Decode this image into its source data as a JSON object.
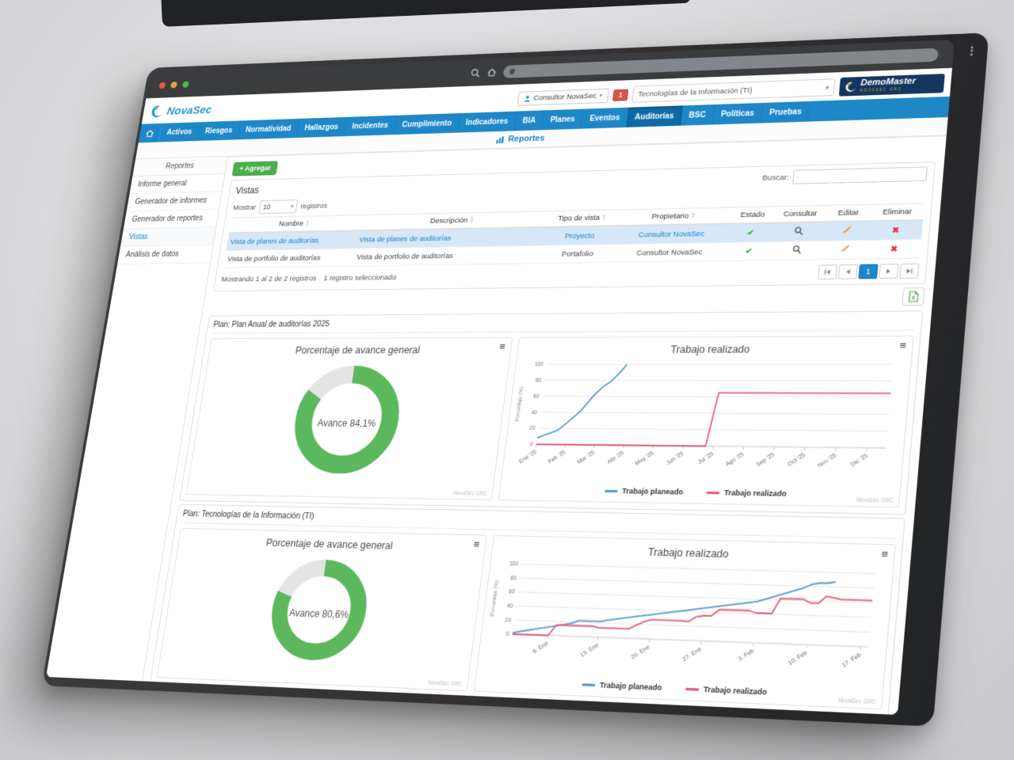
{
  "browser": {
    "menu_dots": "⋮"
  },
  "colors": {
    "accent_blue": "#1e87c8",
    "link_blue": "#1a7fc4",
    "action_green": "#4cae4c",
    "alert_red": "#d9534f"
  },
  "app": {
    "brand": "NovaSec",
    "header": {
      "user_button": "Consultor NovaSec",
      "notification_count": "1",
      "context_select": "Tecnologías de la Información (TI)",
      "demomaster_title": "DemoMaster",
      "demomaster_subtitle": "NOVASEC GRC"
    },
    "nav": {
      "items": [
        {
          "label": "Activos"
        },
        {
          "label": "Riesgos"
        },
        {
          "label": "Normatividad"
        },
        {
          "label": "Hallazgos"
        },
        {
          "label": "Incidentes"
        },
        {
          "label": "Cumplimiento"
        },
        {
          "label": "Indicadores"
        },
        {
          "label": "BIA"
        },
        {
          "label": "Planes"
        },
        {
          "label": "Eventos"
        },
        {
          "label": "Auditorías"
        },
        {
          "label": "BSC"
        },
        {
          "label": "Políticas"
        },
        {
          "label": "Pruebas"
        }
      ]
    },
    "page_title": "Reportes",
    "sidebar": {
      "header": "Reportes",
      "items": [
        {
          "label": "Informe general"
        },
        {
          "label": "Generador de informes"
        },
        {
          "label": "Generador de reportes"
        },
        {
          "label": "Vistas"
        },
        {
          "label": "Análisis de datos"
        }
      ]
    },
    "add_button": "+ Agregar",
    "panel": {
      "title": "Vistas",
      "search_label": "Buscar:",
      "search_value": "",
      "show_label": "Mostrar",
      "show_value": "10",
      "show_suffix": "registros",
      "columns": [
        "Nombre",
        "Descripción",
        "Tipo de vista",
        "Propietario",
        "Estado",
        "Consultar",
        "Editar",
        "Eliminar"
      ],
      "rows": [
        {
          "name": "Vista de planes de auditorías",
          "desc": "Vista de planes de auditorías",
          "tipo": "Proyecto",
          "owner": "Consultor NovaSec"
        },
        {
          "name": "Vista de portfolio de auditorías",
          "desc": "Vista de portfolio de auditorías",
          "tipo": "Portafolio",
          "owner": "Consultor NovaSec"
        }
      ],
      "footer_info": "Mostrando 1 al 2 de 2 registros",
      "footer_selected": "1 registro seleccionado",
      "pagination_page": "1"
    },
    "sections": [
      {
        "title": "Plan: Plan Anual de auditorías 2025"
      },
      {
        "title": "Plan: Tecnologías de la Información (TI)"
      }
    ]
  },
  "chart_data": [
    {
      "type": "pie",
      "subtype": "donut",
      "title": "Porcentaje de avance general",
      "center_label": "Avance 84,1%",
      "value_pct": 84.1,
      "remainder_pct": 15.9,
      "colors": {
        "progress": "#5cb85c",
        "remainder": "#e4e4e4"
      },
      "watermark": "NovaSec GRC"
    },
    {
      "type": "line",
      "title": "Trabajo realizado",
      "ylabel": "Porcentaje (%)",
      "ylim": [
        0,
        100
      ],
      "y_ticks": [
        0,
        20,
        40,
        60,
        80,
        100
      ],
      "x_range": [
        0,
        11.6
      ],
      "x_ticks": [
        {
          "pos": 0,
          "label": "Ene '25"
        },
        {
          "pos": 1,
          "label": "Feb '25"
        },
        {
          "pos": 2,
          "label": "Mar '25"
        },
        {
          "pos": 3,
          "label": "Abr '25"
        },
        {
          "pos": 4,
          "label": "May '25"
        },
        {
          "pos": 5,
          "label": "Jun '25"
        },
        {
          "pos": 6,
          "label": "Jul '25"
        },
        {
          "pos": 7,
          "label": "Ago '25"
        },
        {
          "pos": 8,
          "label": "Sep '25"
        },
        {
          "pos": 9,
          "label": "Oct '25"
        },
        {
          "pos": 10,
          "label": "Nov '25"
        },
        {
          "pos": 11,
          "label": "Dic '25"
        }
      ],
      "series": [
        {
          "name": "Trabajo planeado",
          "color": "#5b9bd5",
          "points": [
            [
              0,
              8
            ],
            [
              0.7,
              18
            ],
            [
              1,
              28
            ],
            [
              1.4,
              42
            ],
            [
              1.8,
              62
            ],
            [
              2.1,
              73
            ],
            [
              2.3,
              78
            ],
            [
              2.6,
              90
            ],
            [
              2.8,
              100
            ]
          ]
        },
        {
          "name": "Trabajo realizado",
          "color": "#e4637c",
          "points": [
            [
              0,
              0
            ],
            [
              5.75,
              0
            ],
            [
              6,
              65
            ],
            [
              11.6,
              65
            ]
          ]
        }
      ],
      "legend_position": "bottom",
      "grid": true,
      "watermark": "NovaSec GRC"
    },
    {
      "type": "pie",
      "subtype": "donut",
      "title": "Porcentaje de avance general",
      "center_label": "Avance 80,6%",
      "value_pct": 80.6,
      "remainder_pct": 19.4,
      "colors": {
        "progress": "#5cb85c",
        "remainder": "#e4e4e4"
      },
      "watermark": "NovaSec GRC"
    },
    {
      "type": "line",
      "title": "Trabajo realizado",
      "ylabel": "Porcentaje (%)",
      "ylim": [
        0,
        100
      ],
      "y_ticks": [
        0,
        20,
        40,
        60,
        80,
        100
      ],
      "x_range": [
        0,
        48
      ],
      "x_ticks": [
        {
          "pos": 5,
          "label": "6. Ene"
        },
        {
          "pos": 12,
          "label": "13. Ene"
        },
        {
          "pos": 19,
          "label": "20. Ene"
        },
        {
          "pos": 26,
          "label": "27. Ene"
        },
        {
          "pos": 33,
          "label": "3. Feb"
        },
        {
          "pos": 40,
          "label": "10. Feb"
        },
        {
          "pos": 47,
          "label": "17. Feb"
        }
      ],
      "series": [
        {
          "name": "Trabajo planeado",
          "color": "#5b9bd5",
          "points": [
            [
              0,
              2
            ],
            [
              8,
              18
            ],
            [
              9,
              22
            ],
            [
              12,
              22
            ],
            [
              14,
              26
            ],
            [
              33,
              57
            ],
            [
              39,
              78
            ],
            [
              40,
              83
            ],
            [
              41,
              85
            ],
            [
              42,
              85
            ],
            [
              43,
              87
            ]
          ]
        },
        {
          "name": "Trabajo realizado",
          "color": "#e4637c",
          "points": [
            [
              0,
              0
            ],
            [
              5,
              0
            ],
            [
              6,
              15
            ],
            [
              11,
              15
            ],
            [
              12,
              13
            ],
            [
              16,
              13
            ],
            [
              18,
              24
            ],
            [
              19,
              27
            ],
            [
              23,
              27
            ],
            [
              24,
              26
            ],
            [
              25,
              33
            ],
            [
              26,
              35
            ],
            [
              27,
              35
            ],
            [
              28,
              44
            ],
            [
              32,
              44
            ],
            [
              33,
              41
            ],
            [
              35,
              41
            ],
            [
              36,
              62
            ],
            [
              39,
              62
            ],
            [
              40,
              57
            ],
            [
              41,
              57
            ],
            [
              42,
              67
            ],
            [
              44,
              63
            ],
            [
              48,
              63
            ]
          ]
        }
      ],
      "legend_position": "bottom",
      "grid": true,
      "watermark": "NovaSec GRC"
    }
  ]
}
